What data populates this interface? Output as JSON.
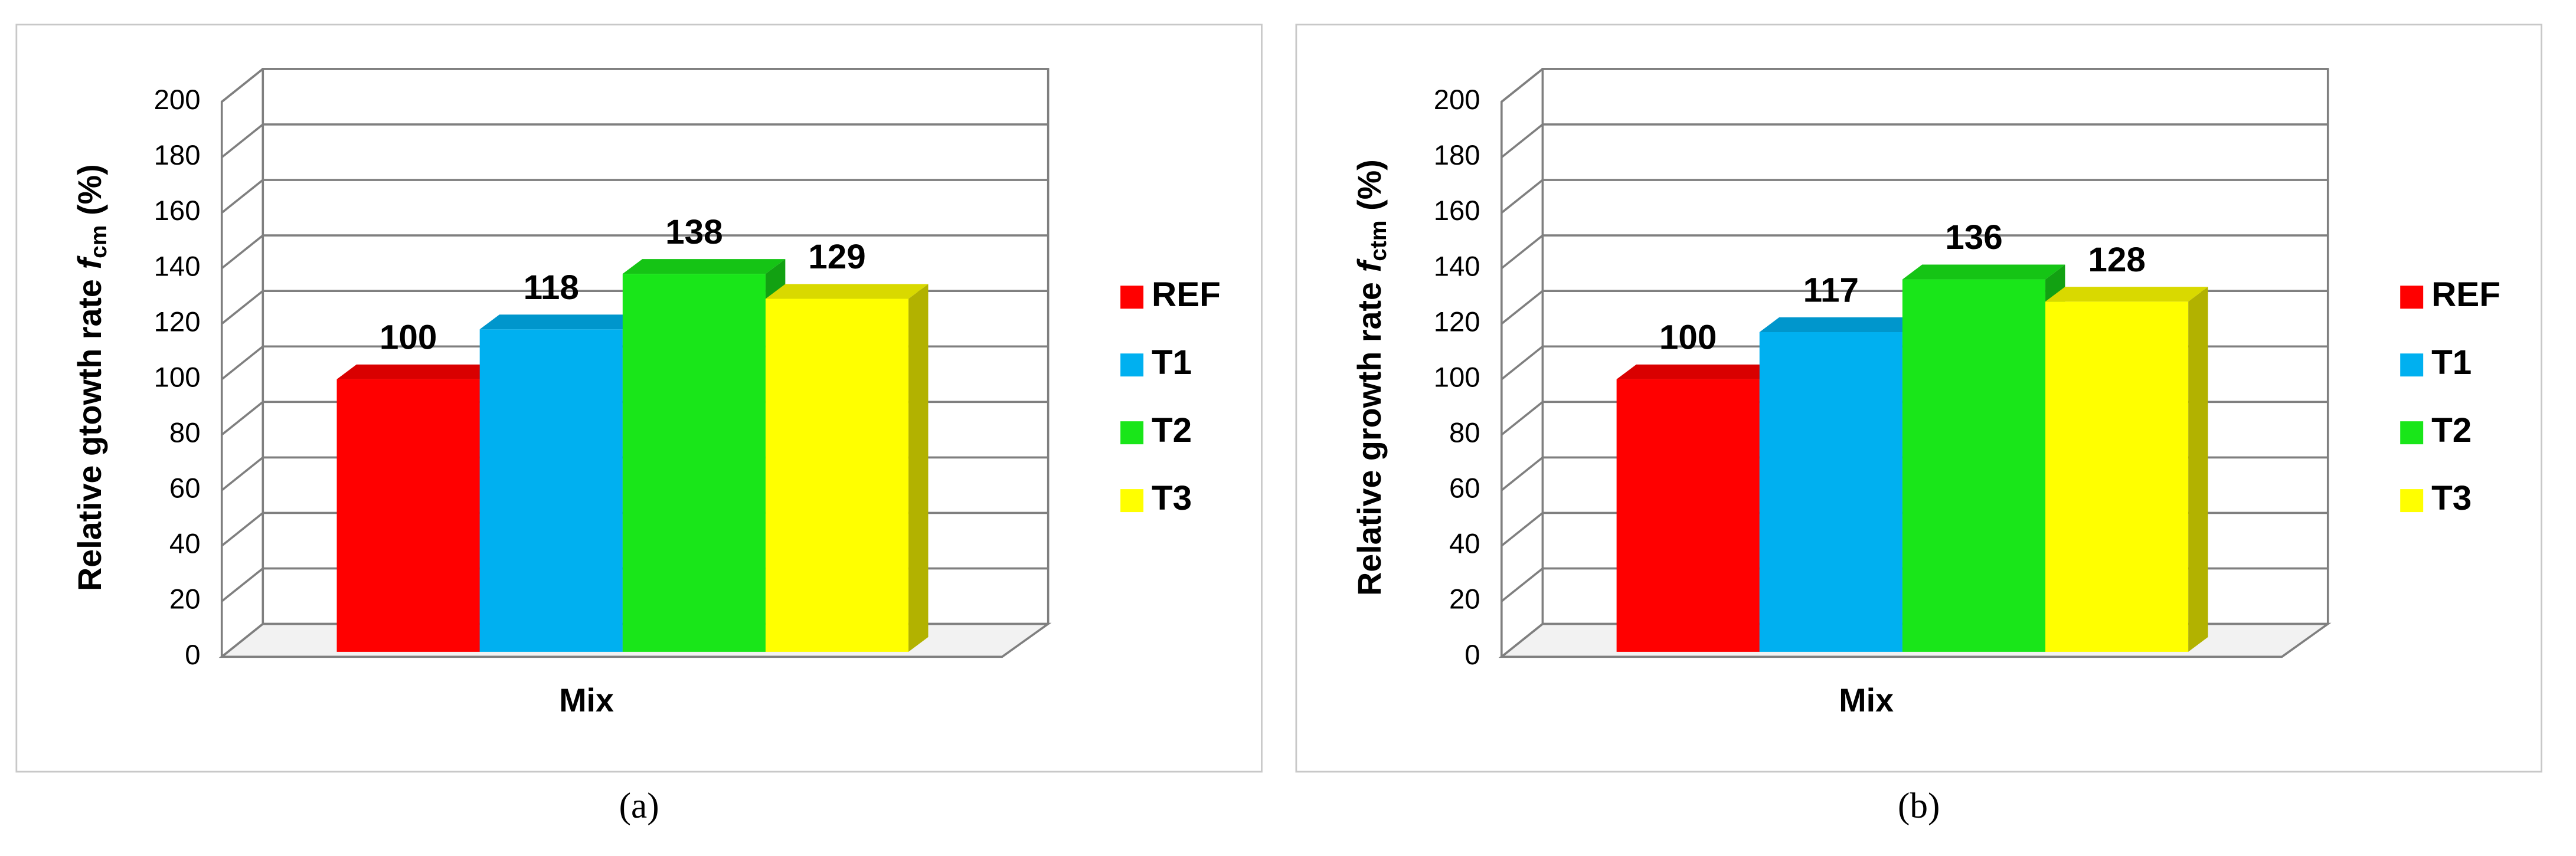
{
  "chart_data": [
    {
      "type": "bar3d",
      "caption": "(a)",
      "categories": [
        "Mix"
      ],
      "ylabel": "Relative gtowth rate",
      "ylabel_symbol": "f",
      "ylabel_subscript": "cm",
      "ylabel_unit": "(%)",
      "ylim": [
        0,
        200
      ],
      "yticks": [
        0,
        20,
        40,
        60,
        80,
        100,
        120,
        140,
        160,
        180,
        200
      ],
      "grid": true,
      "legend": "right",
      "series": [
        {
          "name": "REF",
          "color": "#ff0000",
          "values": [
            100
          ]
        },
        {
          "name": "T1",
          "color": "#00b0f0",
          "values": [
            118
          ]
        },
        {
          "name": "T2",
          "color": "#19e619",
          "values": [
            138
          ]
        },
        {
          "name": "T3",
          "color": "#ffff00",
          "values": [
            129
          ]
        }
      ]
    },
    {
      "type": "bar3d",
      "caption": "(b)",
      "categories": [
        "Mix"
      ],
      "ylabel": "Relative growth rate",
      "ylabel_symbol": "f",
      "ylabel_subscript": "ctm",
      "ylabel_unit": "(%)",
      "ylim": [
        0,
        200
      ],
      "yticks": [
        0,
        20,
        40,
        60,
        80,
        100,
        120,
        140,
        160,
        180,
        200
      ],
      "grid": true,
      "legend": "right",
      "series": [
        {
          "name": "REF",
          "color": "#ff0000",
          "values": [
            100
          ]
        },
        {
          "name": "T1",
          "color": "#00b0f0",
          "values": [
            117
          ]
        },
        {
          "name": "T2",
          "color": "#19e619",
          "values": [
            136
          ]
        },
        {
          "name": "T3",
          "color": "#ffff00",
          "values": [
            128
          ]
        }
      ]
    }
  ]
}
